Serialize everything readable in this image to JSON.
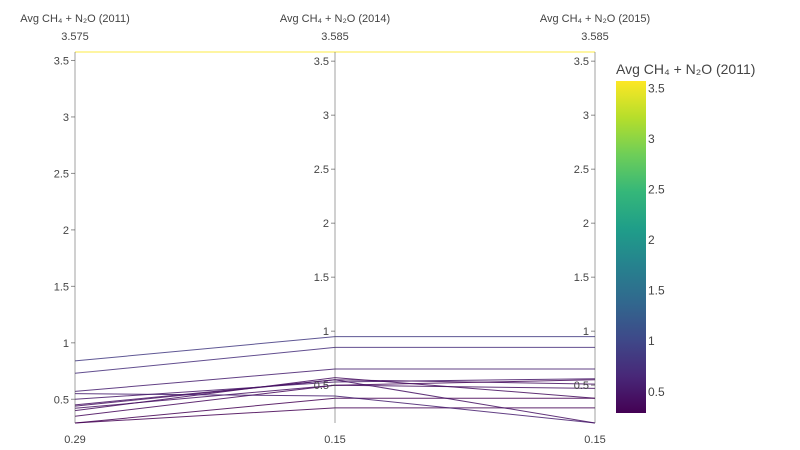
{
  "chart_data": {
    "type": "parallel_coordinates",
    "dimensions": [
      {
        "label": "Avg CH₄ + N₂O (2011)",
        "range_top": "3.575",
        "range_bottom": "0.29",
        "domain": [
          0.29,
          3.575
        ],
        "ticks": [
          "0.5",
          "1",
          "1.5",
          "2",
          "2.5",
          "3",
          "3.5"
        ]
      },
      {
        "label": "Avg CH₄ + N₂O (2014)",
        "range_top": "3.585",
        "range_bottom": "0.15",
        "domain": [
          0.15,
          3.585
        ],
        "ticks": [
          "0.5",
          "1",
          "1.5",
          "2",
          "2.5",
          "3",
          "3.5"
        ]
      },
      {
        "label": "Avg CH₄ + N₂O (2015)",
        "range_top": "3.585",
        "range_bottom": "0.15",
        "domain": [
          0.15,
          3.585
        ],
        "ticks": [
          "0.5",
          "1",
          "1.5",
          "2",
          "2.5",
          "3",
          "3.5"
        ]
      }
    ],
    "lines": [
      [
        0.84,
        0.95,
        0.95
      ],
      [
        0.73,
        0.85,
        0.85
      ],
      [
        0.57,
        0.65,
        0.65
      ],
      [
        0.5,
        0.53,
        0.56
      ],
      [
        0.44,
        0.55,
        0.51
      ],
      [
        0.42,
        0.5,
        0.47
      ],
      [
        0.4,
        0.57,
        0.38
      ],
      [
        0.35,
        0.5,
        0.55
      ],
      [
        0.29,
        0.38,
        0.38
      ],
      [
        0.29,
        0.29,
        0.29
      ],
      [
        0.55,
        0.4,
        0.15
      ],
      [
        0.45,
        0.55,
        0.15
      ],
      [
        3.575,
        3.585,
        3.585
      ]
    ],
    "colorscale": [
      "#440154",
      "#482878",
      "#3e4989",
      "#31688e",
      "#26828e",
      "#1f9e89",
      "#35b779",
      "#6ece58",
      "#b5de2b",
      "#fde725"
    ],
    "colorbar": {
      "title": "Avg CH₄ + N₂O (2011)",
      "ticks": [
        "0.5",
        "1",
        "1.5",
        "2",
        "2.5",
        "3",
        "3.5"
      ],
      "range": [
        0.29,
        3.575
      ]
    }
  }
}
